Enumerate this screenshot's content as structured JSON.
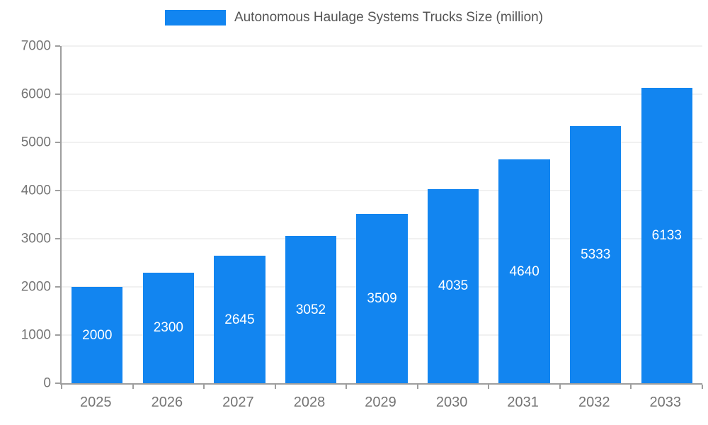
{
  "chart_data": {
    "type": "bar",
    "title": "Autonomous Haulage Systems Trucks Size (million)",
    "categories": [
      "2025",
      "2026",
      "2027",
      "2028",
      "2029",
      "2030",
      "2031",
      "2032",
      "2033"
    ],
    "values": [
      2000,
      2300,
      2645,
      3052,
      3509,
      4035,
      4640,
      5333,
      6133
    ],
    "xlabel": "",
    "ylabel": "",
    "ylim": [
      0,
      7000
    ],
    "ytick_step": 1000,
    "grid": true,
    "legend_position": "top",
    "bar_color": "#1285f0",
    "label_color": "#ffffff",
    "title_color": "#555555",
    "axis_text_color": "#757575",
    "axis_line_color": "#9e9e9e",
    "grid_color": "#e3e3e3"
  }
}
